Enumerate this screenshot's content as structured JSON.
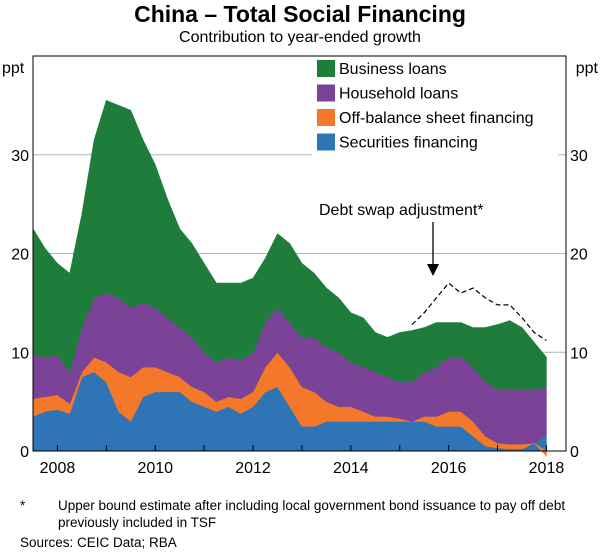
{
  "title": "China – Total Social Financing",
  "subtitle": "Contribution to year-ended growth",
  "chart_data": {
    "type": "area",
    "stacked": true,
    "title": "China – Total Social Financing",
    "subtitle": "Contribution to year-ended growth",
    "y_unit_left": "ppt",
    "y_unit_right": "ppt",
    "ylim": [
      0,
      40
    ],
    "y_ticks": [
      0,
      10,
      20,
      30
    ],
    "xlim": [
      2007.5,
      2018.4
    ],
    "x_ticks": [
      "2008",
      "2010",
      "2012",
      "2014",
      "2016",
      "2018"
    ],
    "grid": "horizontal",
    "legend_position": "top-right",
    "x": [
      2007.5,
      2007.75,
      2008.0,
      2008.25,
      2008.5,
      2008.75,
      2009.0,
      2009.25,
      2009.5,
      2009.75,
      2010.0,
      2010.25,
      2010.5,
      2010.75,
      2011.0,
      2011.25,
      2011.5,
      2011.75,
      2012.0,
      2012.25,
      2012.5,
      2012.75,
      2013.0,
      2013.25,
      2013.5,
      2013.75,
      2014.0,
      2014.25,
      2014.5,
      2014.75,
      2015.0,
      2015.25,
      2015.5,
      2015.75,
      2016.0,
      2016.25,
      2016.5,
      2016.75,
      2017.0,
      2017.25,
      2017.5,
      2017.75,
      2018.0
    ],
    "series": [
      {
        "name": "Securities financing",
        "color": "#2f74b5",
        "values": [
          3.5,
          4.0,
          4.2,
          3.8,
          7.5,
          8.0,
          7.0,
          4.0,
          3.0,
          5.5,
          6.0,
          6.0,
          6.0,
          5.0,
          4.5,
          4.0,
          4.5,
          3.8,
          4.5,
          6.0,
          6.5,
          4.5,
          2.5,
          2.5,
          3.0,
          3.0,
          3.0,
          3.0,
          3.0,
          3.0,
          3.0,
          3.0,
          3.0,
          2.5,
          2.5,
          2.5,
          1.5,
          0.5,
          0.3,
          0.2,
          0.2,
          0.8,
          1.6
        ]
      },
      {
        "name": "Off-balance sheet financing",
        "color": "#f4782a",
        "values": [
          1.8,
          1.5,
          1.5,
          1.0,
          0.5,
          1.5,
          2.0,
          4.0,
          4.5,
          3.0,
          2.5,
          2.0,
          1.5,
          1.5,
          1.5,
          1.0,
          1.0,
          1.5,
          1.5,
          2.5,
          3.5,
          4.0,
          4.0,
          3.5,
          2.0,
          1.5,
          1.5,
          1.0,
          0.5,
          0.5,
          0.3,
          0.0,
          0.5,
          1.0,
          1.5,
          1.5,
          1.5,
          1.0,
          0.5,
          0.5,
          0.5,
          0.0,
          -0.5
        ]
      },
      {
        "name": "Household loans",
        "color": "#7a4397",
        "values": [
          4.5,
          4.0,
          4.0,
          3.2,
          4.5,
          6.0,
          7.0,
          7.5,
          7.0,
          6.5,
          6.0,
          5.5,
          5.0,
          5.0,
          4.0,
          4.0,
          4.0,
          3.9,
          4.0,
          4.5,
          4.5,
          4.5,
          5.0,
          5.5,
          5.5,
          5.5,
          4.5,
          4.5,
          4.5,
          4.0,
          3.7,
          4.0,
          4.5,
          5.0,
          5.5,
          5.5,
          5.5,
          5.5,
          5.5,
          5.5,
          5.5,
          5.4,
          4.9
        ]
      },
      {
        "name": "Business loans",
        "color": "#1e7d3a",
        "values": [
          12.7,
          11.0,
          9.3,
          10.0,
          11.5,
          16.0,
          19.5,
          19.5,
          20.0,
          16.5,
          14.5,
          12.0,
          10.0,
          9.5,
          9.0,
          8.0,
          7.5,
          7.8,
          7.5,
          6.5,
          7.5,
          8.0,
          7.5,
          6.5,
          6.0,
          5.5,
          5.0,
          5.0,
          4.0,
          4.0,
          5.0,
          5.2,
          4.5,
          4.5,
          3.5,
          3.5,
          4.0,
          5.5,
          6.5,
          7.0,
          6.3,
          4.8,
          3.0
        ]
      }
    ],
    "debt_swap": {
      "name": "Debt swap adjustment*",
      "x": [
        2015.25,
        2015.5,
        2015.75,
        2016.0,
        2016.25,
        2016.5,
        2016.75,
        2017.0,
        2017.25,
        2017.5,
        2017.75,
        2018.0
      ],
      "values": [
        12.8,
        14.0,
        15.5,
        17.0,
        16.0,
        16.5,
        15.5,
        14.8,
        14.8,
        13.5,
        12.0,
        11.2
      ]
    },
    "annotation": "Debt swap adjustment*"
  },
  "footnote": {
    "marker": "*",
    "text": "Upper bound estimate after including local government bond issuance to pay off debt previously included in TSF"
  },
  "sources": "Sources: CEIC Data; RBA"
}
